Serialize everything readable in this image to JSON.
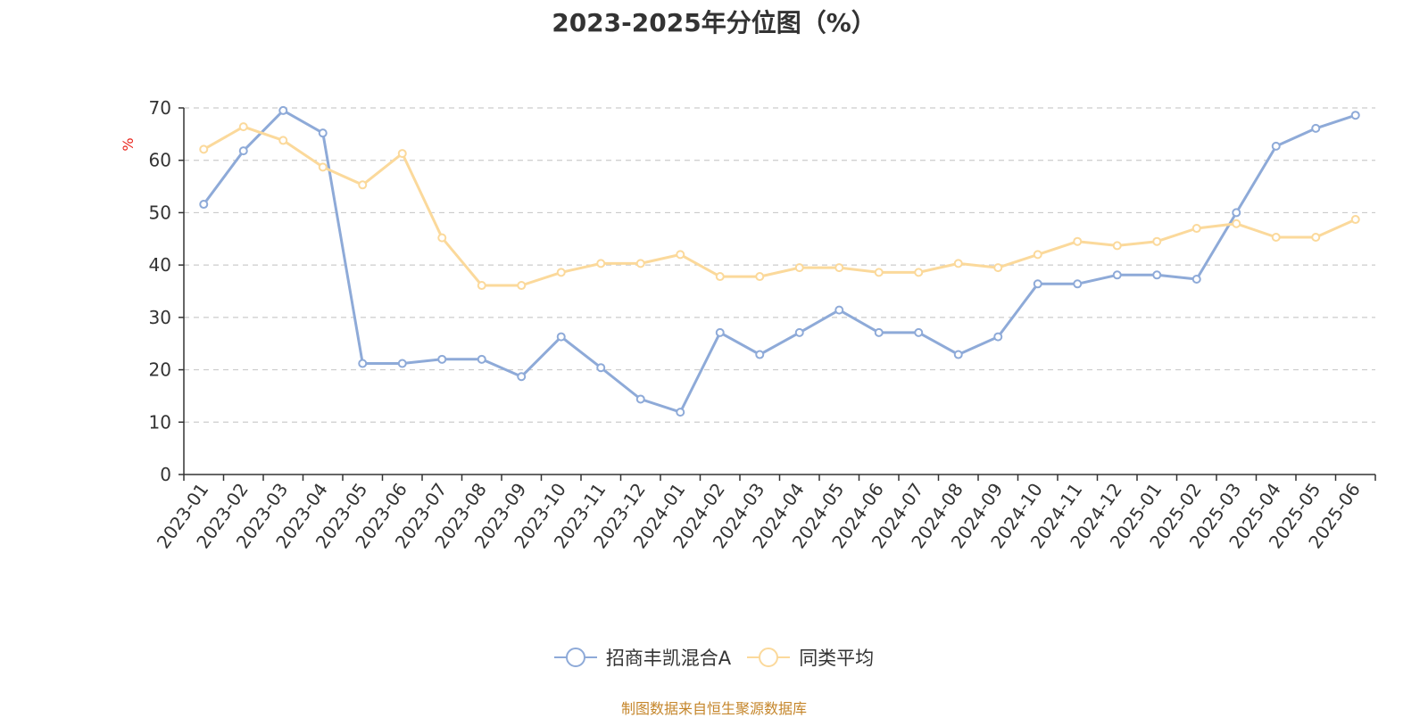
{
  "colors": {
    "series_a": "#8eaad8",
    "series_b": "#fbd99b",
    "ylabel": "#e8231b",
    "source": "#c5862b",
    "grid": "#cccccc",
    "axis": "#333333"
  },
  "footer": {
    "source_text": "制图数据来自恒生聚源数据库"
  },
  "chart_data": {
    "type": "line",
    "title": "2023-2025年分位图（%）",
    "xlabel": "",
    "ylabel": "%",
    "ylim": [
      0,
      70
    ],
    "yticks": [
      0,
      10,
      20,
      30,
      40,
      50,
      60,
      70
    ],
    "grid": true,
    "legend_position": "bottom-center",
    "categories": [
      "2023-01",
      "2023-02",
      "2023-03",
      "2023-04",
      "2023-05",
      "2023-06",
      "2023-07",
      "2023-08",
      "2023-09",
      "2023-10",
      "2023-11",
      "2023-12",
      "2024-01",
      "2024-02",
      "2024-03",
      "2024-04",
      "2024-05",
      "2024-06",
      "2024-07",
      "2024-08",
      "2024-09",
      "2024-10",
      "2024-11",
      "2024-12",
      "2025-01",
      "2025-02",
      "2025-03",
      "2025-04",
      "2025-05",
      "2025-06"
    ],
    "series": [
      {
        "name": "招商丰凯混合A",
        "values": [
          51.6,
          61.8,
          69.5,
          65.2,
          21.2,
          21.2,
          22.0,
          22.0,
          18.7,
          26.3,
          20.4,
          14.4,
          11.9,
          27.1,
          22.9,
          27.1,
          31.4,
          27.1,
          27.1,
          22.9,
          26.3,
          36.4,
          36.4,
          38.1,
          38.1,
          37.3,
          50.0,
          62.7,
          66.1,
          68.6
        ]
      },
      {
        "name": "同类平均",
        "values": [
          62.1,
          66.4,
          63.8,
          58.7,
          55.3,
          61.3,
          45.2,
          36.1,
          36.1,
          38.6,
          40.3,
          40.3,
          42.0,
          37.8,
          37.8,
          39.5,
          39.5,
          38.6,
          38.6,
          40.3,
          39.5,
          42.0,
          44.5,
          43.7,
          44.5,
          47.0,
          47.9,
          45.3,
          45.3,
          48.7
        ]
      }
    ]
  }
}
